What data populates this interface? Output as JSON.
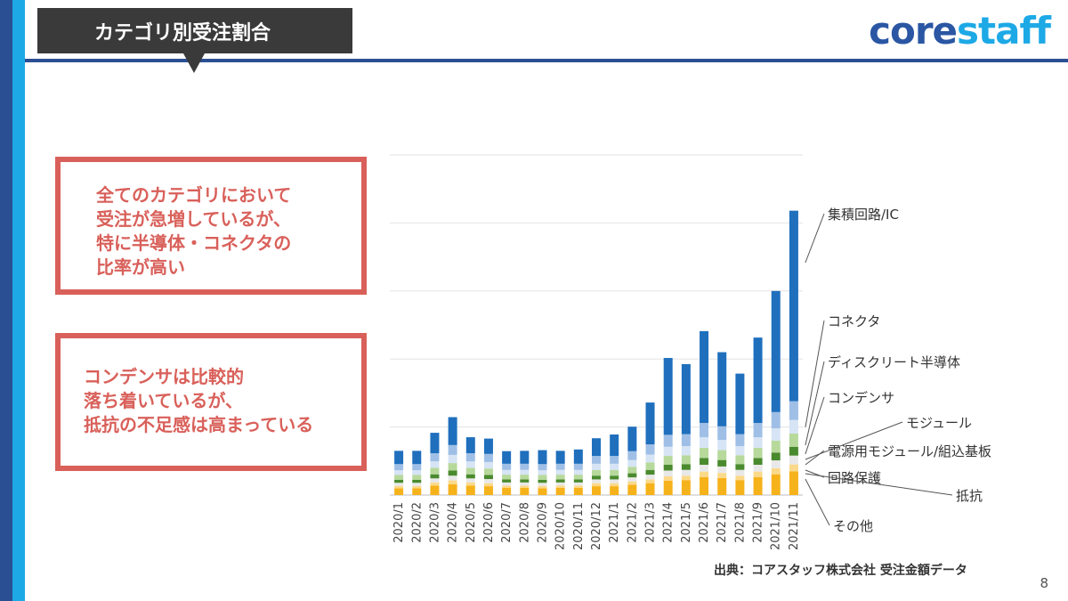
{
  "slide": {
    "title": "カテゴリ別受注割合",
    "logo_main": "core",
    "logo_accent": "staff",
    "page_number": "8",
    "source": "出典：コアスタッフ株式会社 受注金額データ"
  },
  "notes": [
    {
      "lines": [
        "全てのカテゴリにおいて",
        "受注が急増しているが、",
        "特に半導体・コネクタの",
        "比率が高い"
      ]
    },
    {
      "lines": [
        "コンデンサは比較的",
        "落ち着いているが、",
        "抵抗の不足感は高まっている"
      ]
    }
  ],
  "colors": {
    "dark_blue": "#2b4f93",
    "light_blue": "#1da9e6",
    "note_red": "#d9605a",
    "title_bg": "#3a3a3a"
  },
  "chart_data": {
    "type": "bar",
    "stacked": true,
    "title": "",
    "xlabel": "",
    "ylabel": "",
    "grid": true,
    "ylim": [
      0,
      100
    ],
    "categories": [
      "2020/1",
      "2020/2",
      "2020/3",
      "2020/4",
      "2020/5",
      "2020/6",
      "2020/7",
      "2020/8",
      "2020/9",
      "2020/10",
      "2020/11",
      "2020/12",
      "2021/1",
      "2021/2",
      "2021/3",
      "2021/4",
      "2021/5",
      "2021/6",
      "2021/7",
      "2021/8",
      "2021/9",
      "2021/10",
      "2021/11"
    ],
    "series": [
      {
        "name": "その他",
        "color": "#f6b21b",
        "values": [
          2.0,
          2.0,
          2.8,
          3.2,
          2.8,
          2.6,
          2.1,
          2.1,
          2.0,
          2.1,
          2.1,
          2.6,
          2.6,
          3.0,
          3.5,
          4.2,
          4.4,
          5.3,
          5.0,
          4.4,
          5.3,
          6.1,
          7.0
        ]
      },
      {
        "name": "抵抗",
        "color": "#fbd98a",
        "values": [
          0.7,
          0.7,
          0.9,
          1.1,
          0.9,
          0.9,
          0.7,
          0.7,
          0.7,
          0.7,
          0.7,
          0.9,
          0.9,
          1.0,
          1.1,
          1.3,
          1.3,
          1.6,
          1.5,
          1.3,
          1.6,
          1.8,
          2.0
        ]
      },
      {
        "name": "回路保護",
        "color": "#e8e8e8",
        "values": [
          0.9,
          0.9,
          1.2,
          1.4,
          1.2,
          1.2,
          0.9,
          0.9,
          0.9,
          0.9,
          0.9,
          1.1,
          1.1,
          1.2,
          1.4,
          1.7,
          1.7,
          2.0,
          1.9,
          1.7,
          2.0,
          2.3,
          2.6
        ]
      },
      {
        "name": "電源用モジュール/組込基板",
        "color": "#4a8a2e",
        "values": [
          0.9,
          0.9,
          1.2,
          1.5,
          1.2,
          1.2,
          0.9,
          0.9,
          0.9,
          0.9,
          0.9,
          1.1,
          1.1,
          1.2,
          1.4,
          1.7,
          1.7,
          2.0,
          1.9,
          1.7,
          2.0,
          2.3,
          2.6
        ]
      },
      {
        "name": "モジュール",
        "color": "#b7d99c",
        "values": [
          1.4,
          1.4,
          1.9,
          2.2,
          1.9,
          1.9,
          1.4,
          1.4,
          1.4,
          1.4,
          1.4,
          1.7,
          1.7,
          1.9,
          2.2,
          2.6,
          2.6,
          3.0,
          2.9,
          2.6,
          3.0,
          3.5,
          3.9
        ]
      },
      {
        "name": "コンデンサ",
        "color": "#d6e4f5",
        "values": [
          1.4,
          1.4,
          1.9,
          2.4,
          1.9,
          1.9,
          1.4,
          1.4,
          1.4,
          1.4,
          1.4,
          1.8,
          1.8,
          2.0,
          2.3,
          2.7,
          2.7,
          3.1,
          3.0,
          2.7,
          3.1,
          3.6,
          4.0
        ]
      },
      {
        "name": "ディスクリート半導体",
        "color": "#9fbfe6",
        "values": [
          1.8,
          1.8,
          2.4,
          2.9,
          2.4,
          2.4,
          1.8,
          1.8,
          1.8,
          1.8,
          1.8,
          2.3,
          2.3,
          2.6,
          3.0,
          3.5,
          3.5,
          4.2,
          4.0,
          3.5,
          4.2,
          4.8,
          5.5
        ]
      },
      {
        "name": "コネクタ",
        "color": "#c7dcf1",
        "values": [
          0.0,
          0.0,
          0.0,
          0.0,
          0.0,
          0.0,
          0.0,
          0.0,
          0.0,
          0.0,
          0.0,
          0.0,
          0.0,
          0.0,
          0.0,
          0.0,
          0.0,
          0.0,
          0.0,
          0.0,
          0.0,
          0.0,
          0.0
        ]
      },
      {
        "name": "集積回路/IC",
        "color": "#1f6fbd",
        "values": [
          3.9,
          3.9,
          6.0,
          8.2,
          4.7,
          4.5,
          3.7,
          3.8,
          4.1,
          3.8,
          4.2,
          5.2,
          6.3,
          7.2,
          12.3,
          22.6,
          20.6,
          27.0,
          21.8,
          17.8,
          25.1,
          35.6,
          56.0
        ]
      }
    ],
    "legend": {
      "placement": "right"
    }
  }
}
